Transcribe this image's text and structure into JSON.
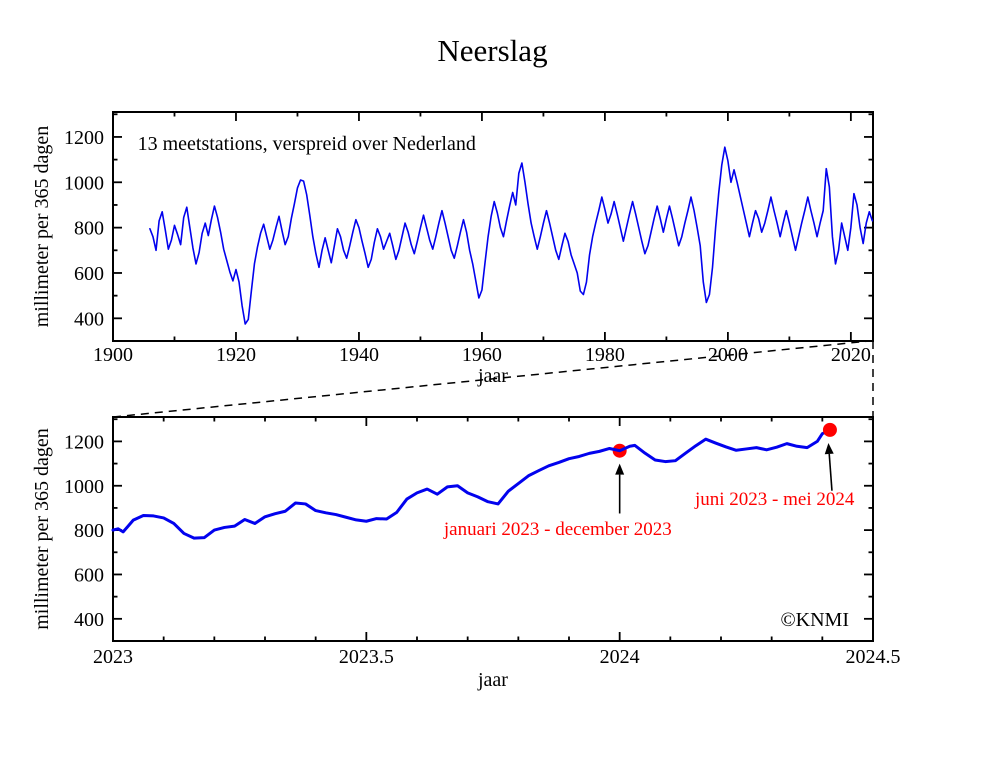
{
  "page": {
    "title": "Neerslag",
    "background": "#ffffff"
  },
  "chart_data": [
    {
      "type": "line",
      "id": "overview",
      "xlabel": "jaar",
      "ylabel": "millimeter per 365 dagen",
      "xlim": [
        1900,
        2023.6
      ],
      "ylim": [
        300,
        1310
      ],
      "x_ticks": {
        "values": [
          1900,
          1920,
          1940,
          1960,
          1980,
          2000,
          2020
        ],
        "labels": [
          "1900",
          "1920",
          "1940",
          "1960",
          "1980",
          "2000",
          "2020"
        ],
        "minor_step": 10
      },
      "y_ticks": {
        "values": [
          400,
          600,
          800,
          1000,
          1200
        ],
        "labels": [
          "400",
          "600",
          "800",
          "1000",
          "1200"
        ],
        "minor_step": 100
      },
      "grid": false,
      "line_color": "#0202ee",
      "line_width": 1.6,
      "series": {
        "x_start": 1906,
        "x_step": 0.5,
        "values": [
          795,
          760,
          700,
          830,
          870,
          790,
          705,
          745,
          810,
          770,
          725,
          845,
          890,
          800,
          710,
          640,
          690,
          775,
          820,
          765,
          835,
          895,
          845,
          780,
          705,
          655,
          605,
          565,
          615,
          560,
          455,
          375,
          395,
          520,
          640,
          715,
          775,
          815,
          760,
          705,
          745,
          800,
          850,
          785,
          725,
          760,
          840,
          905,
          975,
          1010,
          1005,
          945,
          855,
          760,
          685,
          625,
          700,
          755,
          700,
          645,
          720,
          795,
          760,
          700,
          665,
          720,
          780,
          835,
          800,
          740,
          685,
          625,
          660,
          735,
          795,
          760,
          705,
          740,
          775,
          720,
          660,
          700,
          760,
          820,
          780,
          725,
          685,
          740,
          800,
          855,
          800,
          745,
          705,
          760,
          820,
          875,
          820,
          760,
          700,
          665,
          720,
          780,
          835,
          780,
          700,
          640,
          565,
          490,
          525,
          645,
          760,
          850,
          915,
          865,
          800,
          760,
          830,
          895,
          955,
          900,
          1040,
          1085,
          1000,
          905,
          820,
          760,
          705,
          760,
          820,
          875,
          820,
          760,
          700,
          660,
          720,
          775,
          740,
          680,
          640,
          600,
          520,
          505,
          560,
          680,
          760,
          820,
          875,
          935,
          880,
          820,
          860,
          915,
          860,
          800,
          740,
          800,
          860,
          915,
          860,
          800,
          740,
          685,
          720,
          780,
          840,
          895,
          840,
          780,
          840,
          895,
          840,
          780,
          720,
          760,
          820,
          875,
          935,
          875,
          800,
          720,
          560,
          470,
          505,
          625,
          800,
          950,
          1075,
          1155,
          1095,
          1000,
          1055,
          1000,
          940,
          880,
          820,
          760,
          820,
          875,
          840,
          780,
          820,
          875,
          935,
          875,
          820,
          760,
          820,
          875,
          820,
          760,
          700,
          760,
          820,
          875,
          935,
          875,
          820,
          760,
          820,
          875,
          1060,
          980,
          760,
          640,
          700,
          820,
          760,
          700,
          800,
          950,
          900,
          800,
          730,
          820,
          870,
          830
        ]
      },
      "annotations": [
        {
          "text": "13 meetstations, verspreid over Nederland",
          "x": 1904,
          "y": 1173,
          "anchor": "start",
          "color": "#000000",
          "size": 20
        }
      ]
    },
    {
      "type": "line",
      "id": "zoom",
      "xlabel": "jaar",
      "ylabel": "millimeter per 365 dagen",
      "xlim": [
        2023,
        2024.5
      ],
      "ylim": [
        300,
        1310
      ],
      "x_ticks": {
        "values": [
          2023,
          2023.5,
          2024,
          2024.5
        ],
        "labels": [
          "2023",
          "2023.5",
          "2024",
          "2024.5"
        ],
        "minor_step": 0.1
      },
      "y_ticks": {
        "values": [
          400,
          600,
          800,
          1000,
          1200
        ],
        "labels": [
          "400",
          "600",
          "800",
          "1000",
          "1200"
        ],
        "minor_step": 100
      },
      "grid": false,
      "line_color": "#0202ee",
      "line_width": 3,
      "points": [
        [
          2023.0,
          800
        ],
        [
          2023.01,
          806
        ],
        [
          2023.02,
          792
        ],
        [
          2023.04,
          845
        ],
        [
          2023.06,
          866
        ],
        [
          2023.08,
          864
        ],
        [
          2023.1,
          855
        ],
        [
          2023.12,
          830
        ],
        [
          2023.14,
          785
        ],
        [
          2023.16,
          764
        ],
        [
          2023.18,
          766
        ],
        [
          2023.2,
          800
        ],
        [
          2023.22,
          812
        ],
        [
          2023.24,
          818
        ],
        [
          2023.26,
          848
        ],
        [
          2023.28,
          830
        ],
        [
          2023.3,
          860
        ],
        [
          2023.32,
          874
        ],
        [
          2023.34,
          885
        ],
        [
          2023.36,
          922
        ],
        [
          2023.38,
          918
        ],
        [
          2023.4,
          888
        ],
        [
          2023.42,
          878
        ],
        [
          2023.44,
          870
        ],
        [
          2023.46,
          858
        ],
        [
          2023.48,
          846
        ],
        [
          2023.5,
          840
        ],
        [
          2023.52,
          852
        ],
        [
          2023.54,
          850
        ],
        [
          2023.56,
          880
        ],
        [
          2023.58,
          940
        ],
        [
          2023.6,
          968
        ],
        [
          2023.62,
          985
        ],
        [
          2023.64,
          962
        ],
        [
          2023.66,
          995
        ],
        [
          2023.68,
          1000
        ],
        [
          2023.7,
          968
        ],
        [
          2023.72,
          950
        ],
        [
          2023.74,
          928
        ],
        [
          2023.76,
          918
        ],
        [
          2023.78,
          975
        ],
        [
          2023.8,
          1010
        ],
        [
          2023.82,
          1045
        ],
        [
          2023.84,
          1068
        ],
        [
          2023.86,
          1090
        ],
        [
          2023.88,
          1105
        ],
        [
          2023.9,
          1122
        ],
        [
          2023.92,
          1132
        ],
        [
          2023.94,
          1146
        ],
        [
          2023.96,
          1155
        ],
        [
          2023.98,
          1168
        ],
        [
          2024.0,
          1158
        ],
        [
          2024.02,
          1178
        ],
        [
          2024.03,
          1182
        ],
        [
          2024.05,
          1147
        ],
        [
          2024.07,
          1116
        ],
        [
          2024.09,
          1109
        ],
        [
          2024.11,
          1113
        ],
        [
          2024.13,
          1147
        ],
        [
          2024.15,
          1180
        ],
        [
          2024.17,
          1210
        ],
        [
          2024.19,
          1192
        ],
        [
          2024.21,
          1175
        ],
        [
          2024.23,
          1160
        ],
        [
          2024.25,
          1166
        ],
        [
          2024.27,
          1172
        ],
        [
          2024.29,
          1162
        ],
        [
          2024.31,
          1174
        ],
        [
          2024.33,
          1190
        ],
        [
          2024.35,
          1178
        ],
        [
          2024.37,
          1172
        ],
        [
          2024.39,
          1200
        ],
        [
          2024.4,
          1235
        ],
        [
          2024.42,
          1252
        ]
      ],
      "markers": [
        {
          "x": 2024.0,
          "y": 1158,
          "color": "#ff0000",
          "r": 7,
          "layer": "below",
          "label": "januari 2023 - december 2023"
        },
        {
          "x": 2024.415,
          "y": 1252,
          "color": "#ff0000",
          "r": 7,
          "layer": "above",
          "label": "juni 2023 - mei 2024"
        }
      ],
      "annotations": [
        {
          "text": "januari 2023 - december 2023",
          "x": 2023.878,
          "y": 810,
          "anchor": "middle",
          "color": "#ff0000",
          "size": 19,
          "arrow": {
            "x1": 2024.0,
            "y1": 875,
            "x2": 2024.0,
            "y2": 1100
          }
        },
        {
          "text": "juni 2023 - mei 2024",
          "x": 2024.306,
          "y": 945,
          "anchor": "middle",
          "color": "#ff0000",
          "size": 19,
          "arrow": {
            "x1": 2024.419,
            "y1": 978,
            "x2": 2024.412,
            "y2": 1193
          }
        },
        {
          "text": "©KNMI",
          "x": 2024.385,
          "y": 400,
          "anchor": "middle",
          "color": "#000000",
          "size": 20
        }
      ],
      "zoom_region_start_year": 2023
    }
  ]
}
